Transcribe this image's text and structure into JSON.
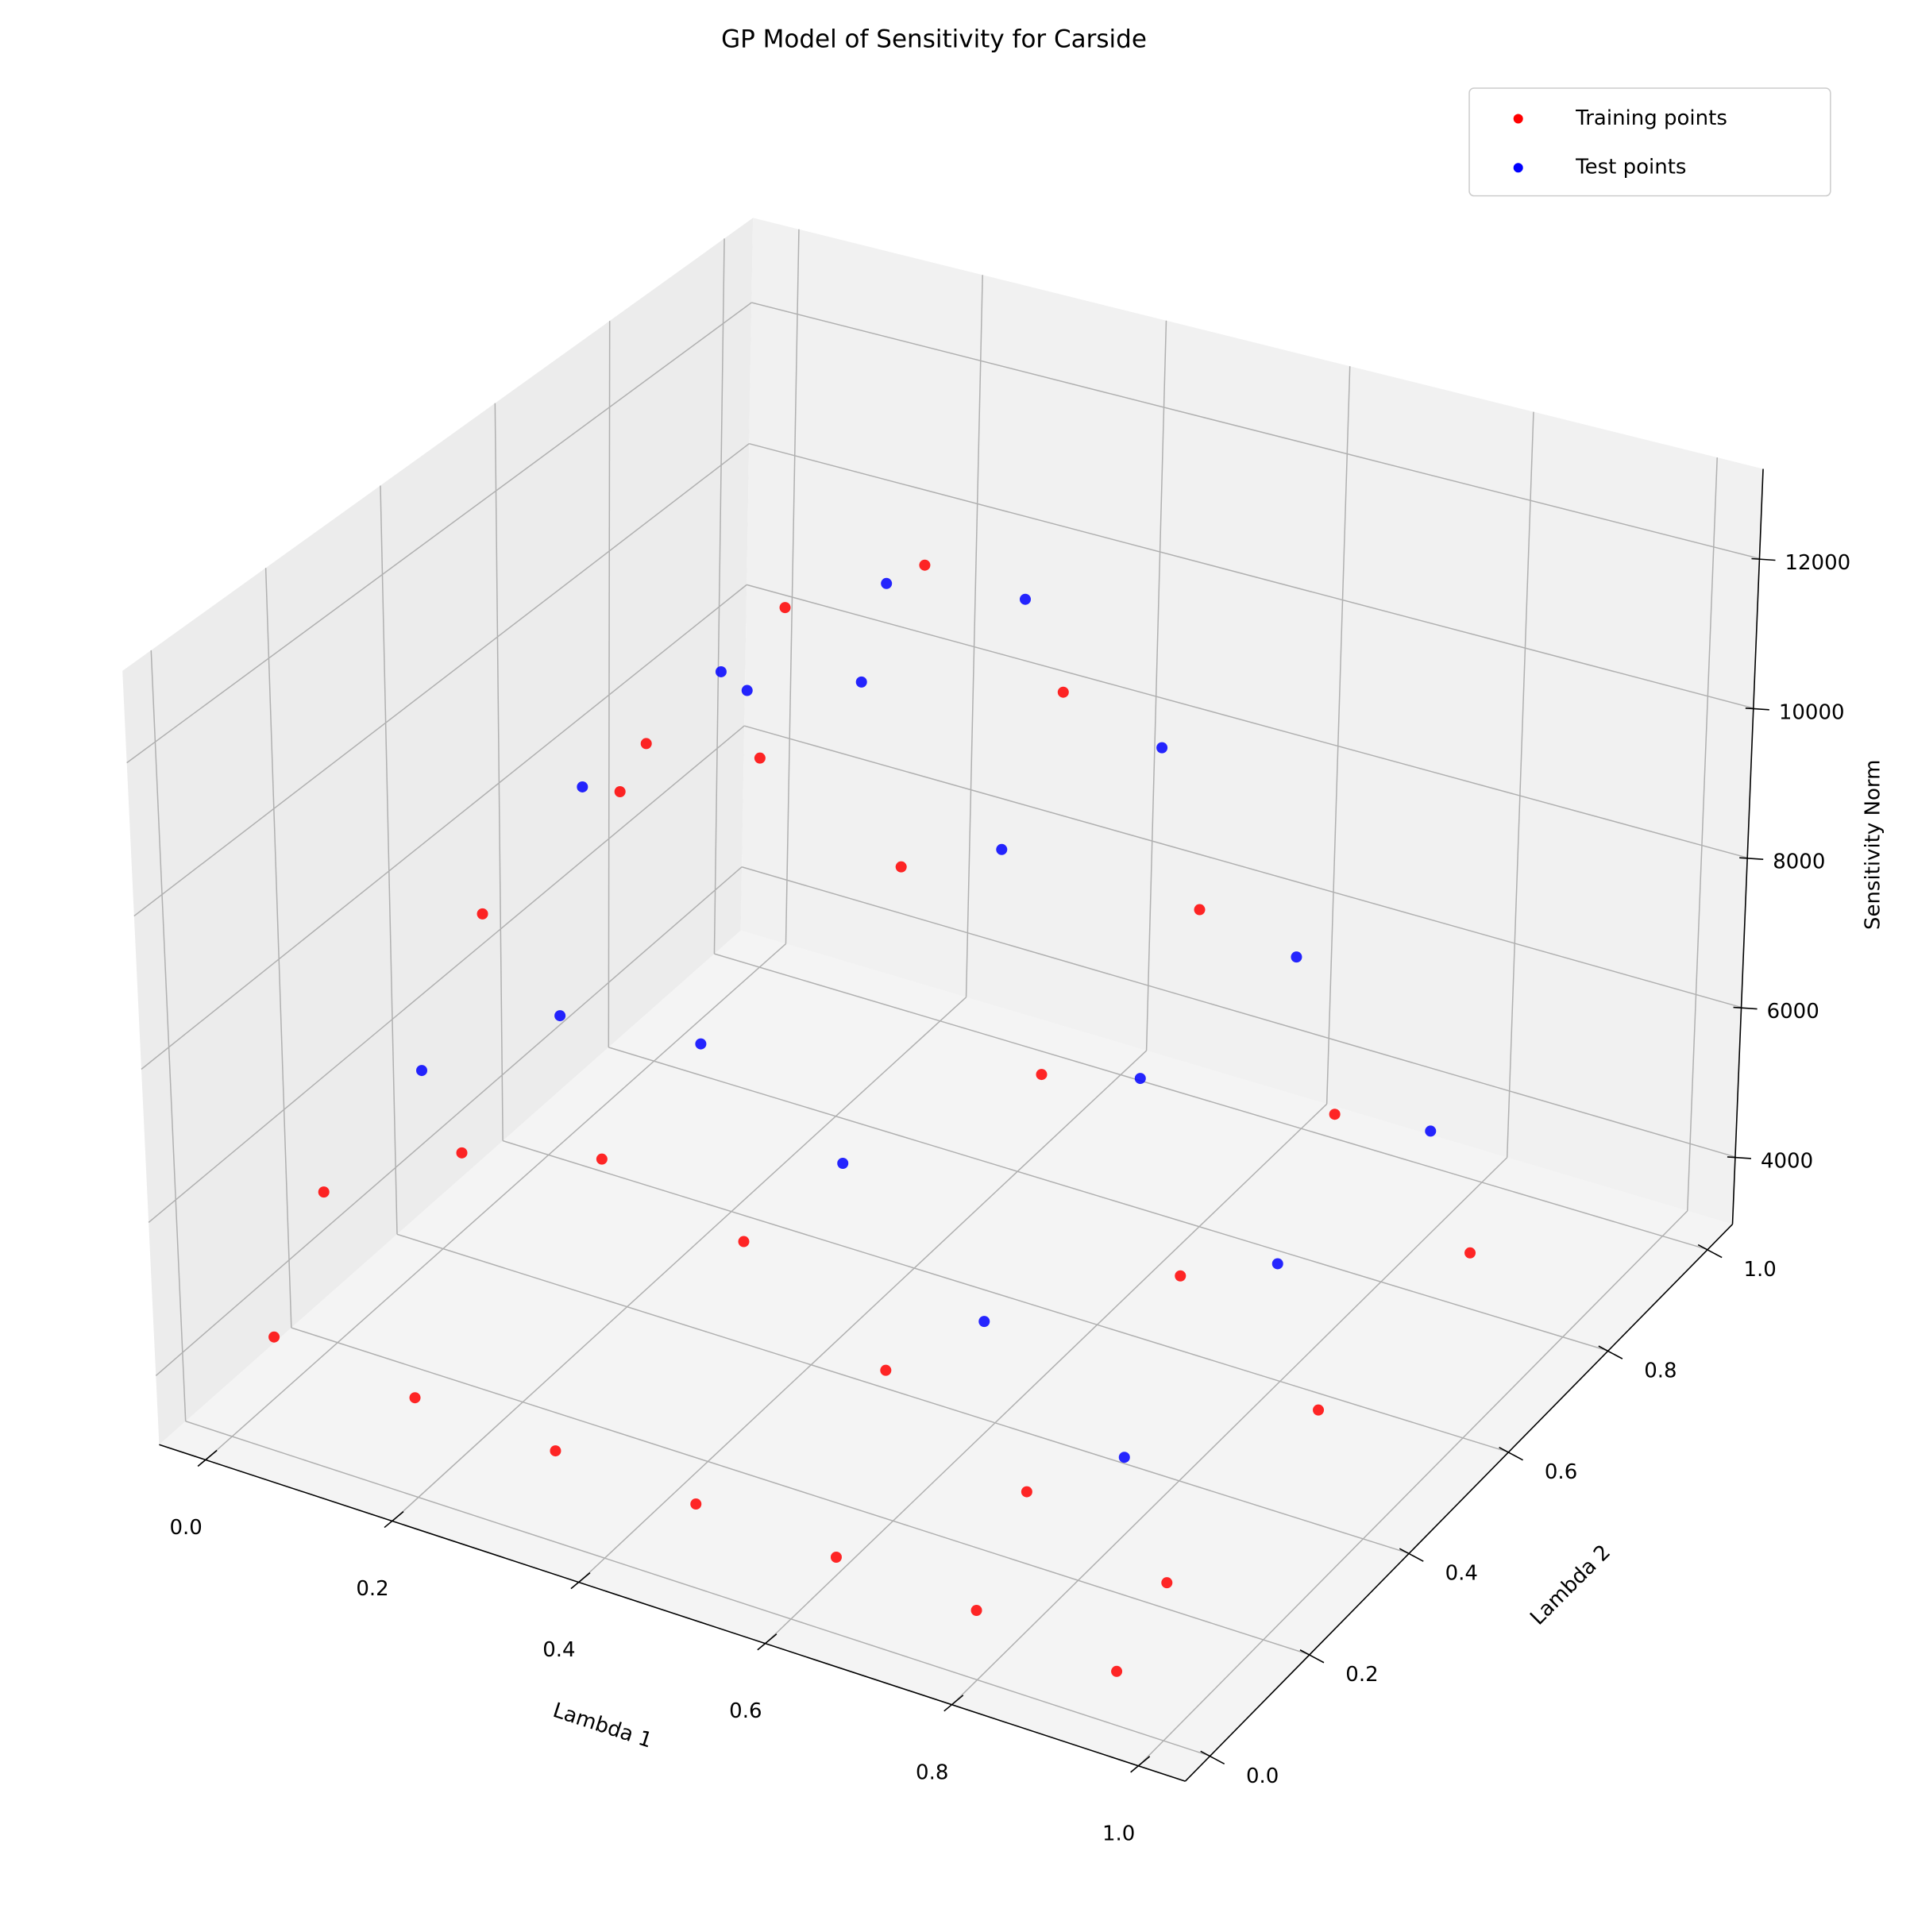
{
  "chart_data": {
    "type": "scatter3d",
    "title": "GP Model of Sensitivity for Carside",
    "xlabel": "Lambda 1",
    "ylabel": "Lambda 2",
    "zlabel": "Sensitivity Norm",
    "xlim": [
      -0.05,
      1.05
    ],
    "ylim": [
      -0.05,
      1.05
    ],
    "zlim": [
      3100,
      13200
    ],
    "xticks": [
      {
        "value": 0,
        "label": "0.0"
      },
      0.2,
      0.4,
      0.6,
      0.8,
      {
        "value": 1,
        "label": "1.0"
      }
    ],
    "yticks": [
      {
        "value": 0,
        "label": "0.0"
      },
      0.2,
      0.4,
      0.6,
      0.8,
      {
        "value": 1,
        "label": "1.0"
      }
    ],
    "zticks": [
      4000,
      6000,
      8000,
      10000,
      12000
    ],
    "grid": true,
    "legend": "upper right",
    "series": [
      {
        "name": "Training points",
        "color": "#ff0000",
        "x": [
          0.05,
          0.05,
          0.05,
          0.05,
          0.2,
          0.2,
          0.2,
          0.2,
          0.35,
          0.35,
          0.35,
          0.35,
          0.5,
          0.5,
          0.5,
          0.5,
          0.65,
          0.65,
          0.65,
          0.65,
          0.8,
          0.8,
          0.8,
          0.8,
          0.95,
          0.95,
          0.95,
          0.95
        ],
        "y": [
          0,
          0.1,
          0.4,
          0.7,
          0,
          0.1,
          0.4,
          0.7,
          0,
          0.1,
          0.4,
          0.7,
          0,
          0.1,
          0.4,
          0.7,
          0,
          0.1,
          0.4,
          0.7,
          0,
          0.1,
          0.4,
          0.7,
          0,
          0.1,
          0.4,
          0.7
        ],
        "z": [
          4600,
          5900,
          7800,
          8300,
          4400,
          7000,
          10000,
          10700,
          4300,
          7500,
          11000,
          11800,
          4200,
          7000,
          10100,
          10600,
          4100,
          5900,
          7900,
          8200,
          4000,
          4900,
          5800,
          6000,
          3800,
          4300,
          4600,
          4700
        ]
      },
      {
        "name": "Test points",
        "color": "#0000ff",
        "x": [
          0.1,
          0.1,
          0.1,
          0.25,
          0.25,
          0.25,
          0.4,
          0.4,
          0.4,
          0.55,
          0.55,
          0.55,
          0.7,
          0.7,
          0.7,
          0.85,
          0.85,
          0.85
        ],
        "y": [
          0.2,
          0.5,
          0.8,
          0.2,
          0.5,
          0.8,
          0.2,
          0.5,
          0.8,
          0.2,
          0.5,
          0.8,
          0.2,
          0.5,
          0.8,
          0.2,
          0.5,
          0.8
        ],
        "z": [
          7100,
          9100,
          8600,
          8400,
          11200,
          10600,
          8600,
          11600,
          10900,
          7600,
          9900,
          9400,
          6100,
          7400,
          7100,
          4900,
          5500,
          5300
        ]
      }
    ]
  }
}
